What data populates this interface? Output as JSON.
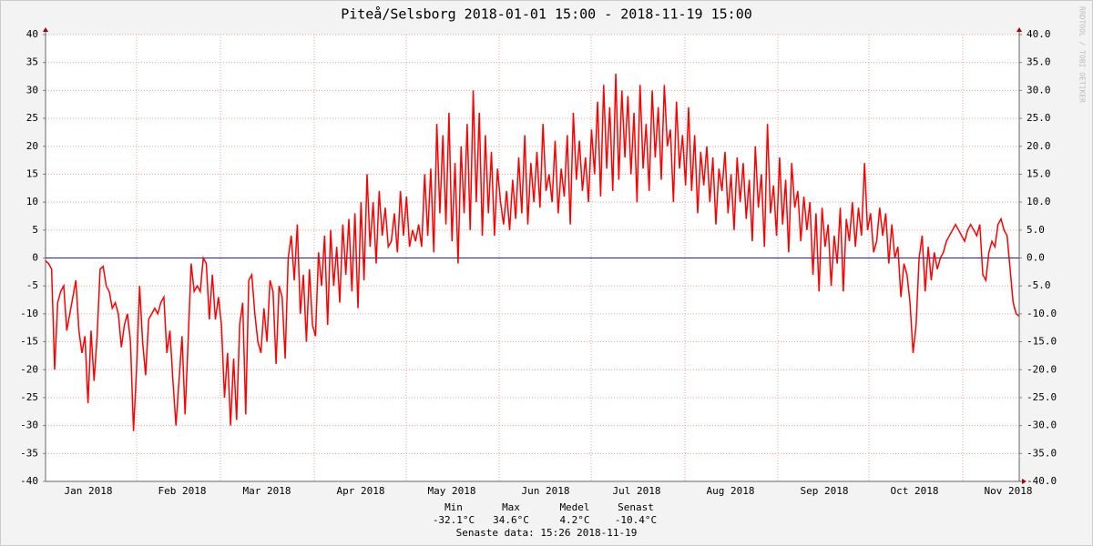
{
  "chart_data": {
    "type": "line",
    "title": "Piteå/Selsborg 2018-01-01 15:00 - 2018-11-19 15:00",
    "watermark": "RRDTOOL / TOBI OETIKER",
    "color": "#ff0000",
    "x_labels": [
      "Jan 2018",
      "Feb 2018",
      "Mar 2018",
      "Apr 2018",
      "May 2018",
      "Jun 2018",
      "Jul 2018",
      "Aug 2018",
      "Sep 2018",
      "Oct 2018",
      "Nov 2018"
    ],
    "ylim": [
      -40,
      40
    ],
    "yticks": [
      -40,
      -35,
      -30,
      -25,
      -20,
      -15,
      -10,
      -5,
      0,
      5,
      10,
      15,
      20,
      25,
      30,
      35,
      40
    ],
    "y2lim": [
      -40,
      40
    ],
    "y2ticks": [
      {
        "value": -40,
        "label": "-40.0"
      },
      {
        "value": -35,
        "label": "-35.0"
      },
      {
        "value": -30,
        "label": "-30.0"
      },
      {
        "value": -25,
        "label": "-25.0"
      },
      {
        "value": -20,
        "label": "-20.0"
      },
      {
        "value": -15,
        "label": "-15.0"
      },
      {
        "value": -10,
        "label": "-10.0"
      },
      {
        "value": -5,
        "label": "-5.0"
      },
      {
        "value": 0,
        "label": "0.0"
      },
      {
        "value": 5,
        "label": "5.0"
      },
      {
        "value": 10,
        "label": "10.0"
      },
      {
        "value": 15,
        "label": "15.0"
      },
      {
        "value": 20,
        "label": "20.0"
      },
      {
        "value": 25,
        "label": "25.0"
      },
      {
        "value": 30,
        "label": "30.0"
      },
      {
        "value": 35,
        "label": "35.0"
      },
      {
        "value": 40,
        "label": "40.0"
      }
    ],
    "grid": true,
    "values": [
      -0.5,
      -1,
      -2,
      -20,
      -8,
      -6,
      -5,
      -13,
      -10,
      -7,
      -4,
      -13,
      -17,
      -14,
      -26,
      -13,
      -22,
      -14,
      -2,
      -1.5,
      -5,
      -6,
      -9,
      -8,
      -10,
      -16,
      -12,
      -10,
      -15,
      -31,
      -20,
      -5,
      -15,
      -21,
      -11,
      -10,
      -9,
      -10,
      -8,
      -7,
      -17,
      -13,
      -22,
      -30,
      -22,
      -14,
      -28,
      -15,
      -1,
      -6,
      -5,
      -6,
      0,
      -1,
      -11,
      -3,
      -11,
      -7,
      -12,
      -25,
      -17,
      -30,
      -18,
      -29,
      -12,
      -8,
      -28,
      -4,
      -3,
      -10,
      -15,
      -17,
      -9,
      -15,
      -4,
      -6,
      -19,
      -5,
      -7,
      -18,
      0,
      4,
      -4,
      6,
      -10,
      -3,
      -15,
      -2,
      -12,
      -14,
      1,
      -5,
      4,
      -12,
      5,
      -5,
      2,
      -8,
      6,
      -3,
      7,
      -6,
      8,
      -9,
      10,
      -4,
      15,
      2,
      10,
      -1,
      12,
      4,
      9,
      2,
      3,
      8,
      1,
      12,
      4,
      11,
      2,
      5,
      3,
      6,
      2,
      15,
      4,
      16,
      1,
      24,
      8,
      22,
      6,
      26,
      3,
      17,
      -1,
      20,
      8,
      24,
      5,
      30,
      10,
      26,
      4,
      22,
      8,
      19,
      4,
      16,
      10,
      6,
      12,
      5,
      14,
      7,
      18,
      8,
      22,
      6,
      17,
      10,
      19,
      9,
      24,
      12,
      15,
      10,
      21,
      8,
      16,
      11,
      22,
      6,
      26,
      14,
      21,
      12,
      18,
      10,
      23,
      15,
      28,
      11,
      31,
      16,
      27,
      12,
      33,
      14,
      30,
      18,
      29,
      15,
      26,
      10,
      31,
      16,
      24,
      12,
      30,
      18,
      27,
      14,
      31,
      20,
      23,
      10,
      28,
      16,
      22,
      13,
      27,
      12,
      22,
      8,
      19,
      13,
      20,
      10,
      18,
      6,
      16,
      12,
      19,
      8,
      15,
      5,
      18,
      10,
      17,
      7,
      14,
      3,
      20,
      9,
      15,
      2,
      24,
      8,
      13,
      4,
      18,
      6,
      14,
      1,
      17,
      9,
      12,
      3,
      11,
      5,
      10,
      -3,
      8,
      -6,
      9,
      2,
      6,
      -5,
      4,
      -1,
      9,
      -6,
      7,
      3,
      10,
      2,
      9,
      4,
      17,
      5,
      8,
      1,
      3,
      9,
      4,
      8,
      -1,
      6,
      0,
      2,
      -7,
      -1,
      -3,
      -8,
      -17,
      -12,
      0,
      4,
      -6,
      2,
      -4,
      1,
      -2,
      0,
      1,
      3,
      4,
      5,
      6,
      5,
      4,
      3,
      5,
      6,
      5,
      4,
      6,
      -3,
      -4,
      1,
      3,
      2,
      6,
      7,
      5,
      4,
      -2,
      -8,
      -10,
      -10.4
    ],
    "summary": {
      "labels": [
        "Min",
        "Max",
        "Medel",
        "Senast"
      ],
      "values": [
        "-32.1°C",
        "34.6°C",
        "4.2°C",
        "-10.4°C"
      ]
    },
    "footer": "Senaste data: 15:26 2018-11-19"
  }
}
